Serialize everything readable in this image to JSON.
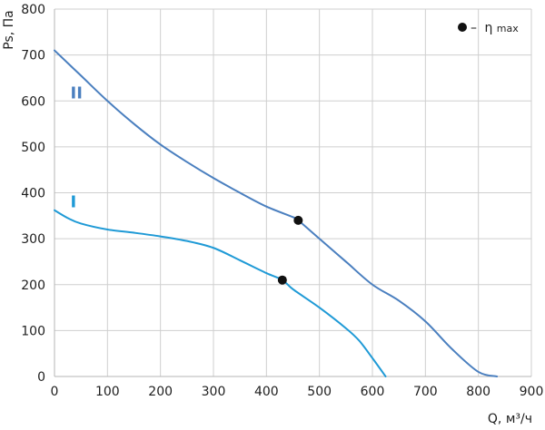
{
  "chart_data": {
    "type": "line",
    "xlabel": "Q, м³/ч",
    "ylabel": "Ps, Па",
    "xlim": [
      0,
      900
    ],
    "ylim": [
      0,
      800
    ],
    "x_ticks": [
      0,
      100,
      200,
      300,
      400,
      500,
      600,
      700,
      800,
      900
    ],
    "y_ticks": [
      0,
      100,
      200,
      300,
      400,
      500,
      600,
      700,
      800
    ],
    "grid": true,
    "legend": {
      "placement": "top-right",
      "text": "– ηmax",
      "dash": "–",
      "symbol": "η",
      "subscript": "max"
    },
    "series": [
      {
        "name": "II",
        "color": "#4a7fbf",
        "points": [
          [
            0,
            710
          ],
          [
            50,
            655
          ],
          [
            100,
            600
          ],
          [
            150,
            550
          ],
          [
            200,
            505
          ],
          [
            250,
            467
          ],
          [
            300,
            432
          ],
          [
            350,
            400
          ],
          [
            400,
            370
          ],
          [
            450,
            347
          ],
          [
            460,
            340
          ],
          [
            500,
            300
          ],
          [
            550,
            250
          ],
          [
            600,
            200
          ],
          [
            650,
            165
          ],
          [
            700,
            120
          ],
          [
            750,
            60
          ],
          [
            800,
            10
          ],
          [
            835,
            0
          ]
        ],
        "max_efficiency_point": [
          460,
          340
        ]
      },
      {
        "name": "I",
        "color": "#1f9ad6",
        "points": [
          [
            0,
            362
          ],
          [
            25,
            345
          ],
          [
            50,
            333
          ],
          [
            100,
            320
          ],
          [
            150,
            313
          ],
          [
            200,
            305
          ],
          [
            250,
            295
          ],
          [
            300,
            280
          ],
          [
            350,
            253
          ],
          [
            400,
            225
          ],
          [
            430,
            210
          ],
          [
            450,
            190
          ],
          [
            500,
            150
          ],
          [
            550,
            105
          ],
          [
            575,
            78
          ],
          [
            600,
            40
          ],
          [
            625,
            0
          ]
        ],
        "max_efficiency_point": [
          430,
          210
        ]
      }
    ]
  }
}
